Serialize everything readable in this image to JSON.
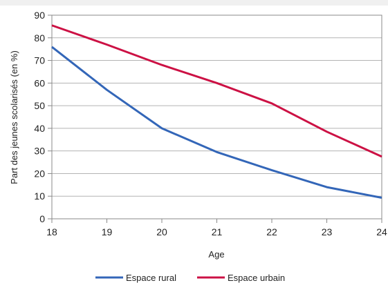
{
  "chart_data": {
    "type": "line",
    "x": [
      18,
      19,
      20,
      21,
      22,
      23,
      24
    ],
    "series": [
      {
        "name": "Espace rural",
        "values": [
          76,
          57,
          40,
          29.5,
          21.5,
          14,
          9.3
        ],
        "color": "#3366b8"
      },
      {
        "name": "Espace urbain",
        "values": [
          85.5,
          77,
          68,
          60,
          51,
          38.5,
          27.5
        ],
        "color": "#cc1144"
      }
    ],
    "xlabel": "Age",
    "ylabel": "Part des jeunes scolarisés (en %)",
    "xlim": [
      18,
      24
    ],
    "ylim": [
      0,
      90
    ],
    "yticks": [
      0,
      10,
      20,
      30,
      40,
      50,
      60,
      70,
      80,
      90
    ],
    "xticks": [
      18,
      19,
      20,
      21,
      22,
      23,
      24
    ],
    "grid": true,
    "legend_position": "bottom"
  }
}
